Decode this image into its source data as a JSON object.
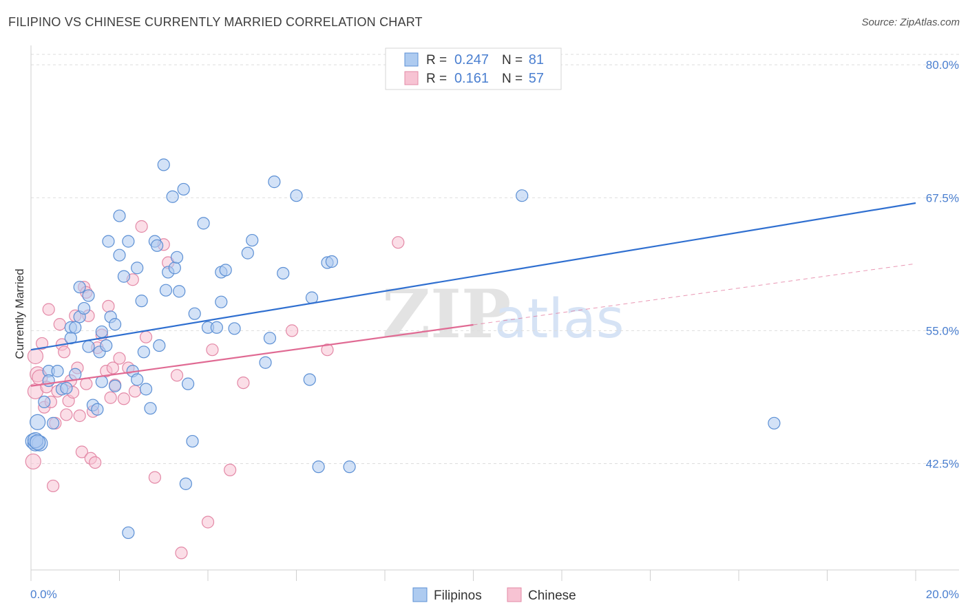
{
  "header": {
    "title": "FILIPINO VS CHINESE CURRENTLY MARRIED CORRELATION CHART",
    "source": "Source: ZipAtlas.com"
  },
  "colors": {
    "filipinos_fill": "#aecbf0",
    "filipinos_stroke": "#5b8fd4",
    "filipinos_line": "#2f6fd0",
    "chinese_fill": "#f7c3d3",
    "chinese_stroke": "#e388a6",
    "chinese_line": "#e06a93",
    "axis_label": "#4a7fd0",
    "grid": "#dddddd"
  },
  "legend_top": {
    "rows": [
      {
        "series": "Filipinos",
        "r_label": "R =",
        "r_value": "0.247",
        "n_label": "N =",
        "n_value": "81"
      },
      {
        "series": "Chinese",
        "r_label": "R =",
        "r_value": "0.161",
        "n_label": "N =",
        "n_value": "57"
      }
    ]
  },
  "watermark": {
    "zip": "ZIP",
    "atlas": "atlas"
  },
  "chart_data": {
    "type": "scatter",
    "title": "FILIPINO VS CHINESE CURRENTLY MARRIED CORRELATION CHART",
    "xlabel": "",
    "ylabel": "Currently Married",
    "xlim": [
      0,
      20
    ],
    "ylim": [
      32.5,
      81.5
    ],
    "x_tick_labels": [
      "0.0%",
      "20.0%"
    ],
    "y_ticks": [
      42.5,
      55.0,
      67.5,
      80.0
    ],
    "y_tick_labels": [
      "42.5%",
      "55.0%",
      "67.5%",
      "80.0%"
    ],
    "grid": true,
    "legend_position": "top-center and bottom",
    "series": [
      {
        "name": "Filipinos",
        "r": 0.247,
        "n": 81,
        "trend": {
          "x0": 0.0,
          "y0": 53.2,
          "x1": 20.0,
          "y1": 67.0,
          "dashed_from": null
        },
        "points": [
          [
            0.05,
            44.6
          ],
          [
            0.1,
            44.4
          ],
          [
            0.15,
            46.4
          ],
          [
            0.2,
            44.4
          ],
          [
            0.3,
            48.3
          ],
          [
            0.4,
            51.2
          ],
          [
            0.4,
            50.3
          ],
          [
            0.5,
            46.3
          ],
          [
            0.6,
            51.2
          ],
          [
            0.7,
            49.5
          ],
          [
            0.8,
            49.6
          ],
          [
            0.9,
            55.3
          ],
          [
            0.9,
            54.3
          ],
          [
            1.0,
            55.3
          ],
          [
            1.0,
            50.9
          ],
          [
            1.1,
            59.1
          ],
          [
            1.1,
            56.3
          ],
          [
            1.2,
            57.1
          ],
          [
            1.3,
            58.3
          ],
          [
            1.3,
            53.5
          ],
          [
            1.4,
            48.0
          ],
          [
            1.5,
            47.6
          ],
          [
            1.55,
            53.0
          ],
          [
            1.6,
            54.9
          ],
          [
            1.6,
            50.2
          ],
          [
            1.7,
            53.6
          ],
          [
            1.75,
            63.4
          ],
          [
            1.8,
            56.3
          ],
          [
            1.9,
            55.6
          ],
          [
            1.9,
            49.8
          ],
          [
            2.0,
            62.1
          ],
          [
            2.0,
            65.8
          ],
          [
            2.1,
            60.1
          ],
          [
            2.2,
            63.4
          ],
          [
            2.2,
            36.0
          ],
          [
            2.3,
            51.2
          ],
          [
            2.4,
            50.4
          ],
          [
            2.4,
            60.9
          ],
          [
            2.5,
            57.8
          ],
          [
            2.55,
            53.0
          ],
          [
            2.6,
            49.5
          ],
          [
            2.7,
            47.7
          ],
          [
            2.8,
            63.4
          ],
          [
            2.85,
            63.0
          ],
          [
            2.9,
            53.6
          ],
          [
            3.0,
            70.6
          ],
          [
            3.05,
            58.8
          ],
          [
            3.1,
            60.5
          ],
          [
            3.2,
            67.6
          ],
          [
            3.25,
            60.9
          ],
          [
            3.3,
            61.9
          ],
          [
            3.35,
            58.7
          ],
          [
            3.45,
            68.3
          ],
          [
            3.5,
            40.6
          ],
          [
            3.55,
            50.0
          ],
          [
            3.65,
            44.6
          ],
          [
            3.7,
            56.6
          ],
          [
            3.9,
            65.1
          ],
          [
            4.0,
            55.3
          ],
          [
            4.2,
            55.3
          ],
          [
            4.3,
            57.7
          ],
          [
            4.3,
            60.5
          ],
          [
            4.4,
            60.7
          ],
          [
            4.6,
            55.2
          ],
          [
            4.9,
            62.3
          ],
          [
            5.0,
            63.5
          ],
          [
            5.3,
            52.0
          ],
          [
            5.4,
            54.3
          ],
          [
            5.5,
            69.0
          ],
          [
            5.7,
            60.4
          ],
          [
            6.0,
            67.7
          ],
          [
            6.3,
            50.4
          ],
          [
            6.35,
            58.1
          ],
          [
            6.5,
            42.2
          ],
          [
            6.7,
            61.4
          ],
          [
            6.8,
            61.5
          ],
          [
            7.2,
            42.2
          ],
          [
            11.1,
            67.7
          ],
          [
            16.8,
            46.3
          ],
          [
            0.1,
            44.7
          ],
          [
            0.15,
            44.5
          ]
        ]
      },
      {
        "name": "Chinese",
        "r": 0.161,
        "n": 57,
        "trend": {
          "x0": 0.0,
          "y0": 49.8,
          "x1": 20.0,
          "y1": 61.3,
          "dashed_from": 10.0
        },
        "points": [
          [
            0.05,
            42.7
          ],
          [
            0.1,
            49.3
          ],
          [
            0.1,
            52.6
          ],
          [
            0.15,
            50.9
          ],
          [
            0.2,
            50.6
          ],
          [
            0.25,
            53.8
          ],
          [
            0.3,
            47.8
          ],
          [
            0.35,
            49.7
          ],
          [
            0.4,
            57.0
          ],
          [
            0.45,
            48.3
          ],
          [
            0.5,
            40.4
          ],
          [
            0.55,
            46.3
          ],
          [
            0.6,
            49.3
          ],
          [
            0.65,
            55.6
          ],
          [
            0.7,
            53.7
          ],
          [
            0.75,
            53.0
          ],
          [
            0.8,
            47.1
          ],
          [
            0.85,
            48.4
          ],
          [
            0.9,
            50.3
          ],
          [
            0.95,
            49.2
          ],
          [
            1.0,
            56.4
          ],
          [
            1.05,
            51.5
          ],
          [
            1.1,
            47.0
          ],
          [
            1.15,
            43.6
          ],
          [
            1.2,
            59.1
          ],
          [
            1.25,
            50.0
          ],
          [
            1.3,
            56.4
          ],
          [
            1.35,
            43.0
          ],
          [
            1.4,
            47.4
          ],
          [
            1.45,
            42.6
          ],
          [
            1.5,
            53.4
          ],
          [
            1.6,
            54.6
          ],
          [
            1.7,
            51.2
          ],
          [
            1.75,
            57.3
          ],
          [
            1.8,
            48.7
          ],
          [
            1.85,
            51.5
          ],
          [
            1.9,
            49.9
          ],
          [
            2.0,
            52.4
          ],
          [
            2.1,
            48.6
          ],
          [
            2.2,
            51.5
          ],
          [
            2.3,
            59.8
          ],
          [
            2.35,
            49.3
          ],
          [
            2.5,
            64.8
          ],
          [
            2.6,
            54.4
          ],
          [
            2.8,
            41.2
          ],
          [
            3.0,
            63.1
          ],
          [
            3.1,
            61.4
          ],
          [
            3.3,
            50.8
          ],
          [
            3.4,
            34.1
          ],
          [
            4.0,
            37.0
          ],
          [
            4.1,
            53.2
          ],
          [
            4.5,
            41.9
          ],
          [
            4.8,
            50.1
          ],
          [
            5.9,
            55.0
          ],
          [
            6.7,
            53.2
          ],
          [
            8.3,
            63.3
          ],
          [
            1.25,
            58.6
          ]
        ]
      }
    ]
  },
  "legend_bottom": {
    "items": [
      {
        "label": "Filipinos"
      },
      {
        "label": "Chinese"
      }
    ]
  }
}
